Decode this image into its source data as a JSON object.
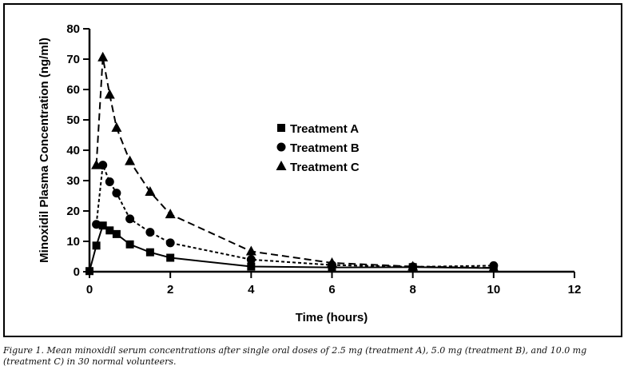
{
  "chart_data": {
    "type": "line",
    "title": "",
    "xlabel": "Time (hours)",
    "ylabel": "Minoxidil Plasma Concentration (ng/ml)",
    "xlim": [
      0,
      12
    ],
    "ylim": [
      0,
      80
    ],
    "xticks": [
      "0",
      "2",
      "4",
      "6",
      "8",
      "10",
      "12"
    ],
    "yticks": [
      "0",
      "10",
      "20",
      "30",
      "40",
      "50",
      "60",
      "70",
      "80"
    ],
    "grid": false,
    "legend_position": "center",
    "series": [
      {
        "name": "Treatment A",
        "marker": "square",
        "line": "solid",
        "x": [
          0,
          0.17,
          0.33,
          0.5,
          0.67,
          1,
          1.5,
          2,
          4,
          6,
          8,
          10
        ],
        "y": [
          0.2,
          8.6,
          15.2,
          13.6,
          12.4,
          9.0,
          6.4,
          4.6,
          1.7,
          1.4,
          1.5,
          1.2
        ]
      },
      {
        "name": "Treatment B",
        "marker": "circle",
        "line": "dotted",
        "x": [
          0.17,
          0.33,
          0.5,
          0.67,
          1,
          1.5,
          2,
          4,
          6,
          8,
          10
        ],
        "y": [
          15.6,
          35.1,
          29.6,
          25.9,
          17.4,
          13.0,
          9.5,
          4.0,
          2.2,
          1.6,
          2.0
        ]
      },
      {
        "name": "Treatment C",
        "marker": "triangle",
        "line": "dashed",
        "x": [
          0.17,
          0.33,
          0.5,
          0.67,
          1,
          1.5,
          2,
          4,
          6,
          8,
          10
        ],
        "y": [
          35.1,
          70.6,
          58.3,
          47.4,
          36.4,
          26.3,
          18.9,
          6.7,
          2.9,
          1.7,
          1.3
        ]
      }
    ]
  },
  "caption": {
    "line1": "Figure 1. Mean minoxidil serum concentrations after single oral doses of 2.5 mg (treatment A), 5.0 mg (treatment B), and 10.0 mg",
    "line2": "(treatment C) in 30 normal volunteers."
  }
}
